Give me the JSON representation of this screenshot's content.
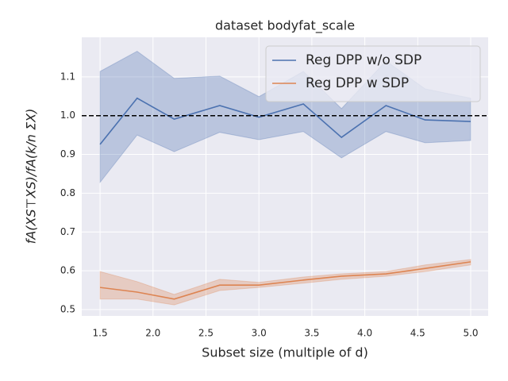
{
  "chart_data": {
    "type": "line",
    "title": "dataset bodyfat_scale",
    "xlabel": "Subset size (multiple of d)",
    "ylabel": "fA(XS⊤XS)/fA(k/n ΣX)",
    "x": [
      1.5,
      1.85,
      2.2,
      2.63,
      3.0,
      3.42,
      3.78,
      4.2,
      4.57,
      5.0
    ],
    "series": [
      {
        "name": "Reg DPP w/o SDP",
        "color": "#4c72b0",
        "values": [
          0.926,
          1.045,
          0.991,
          1.026,
          0.996,
          1.03,
          0.944,
          1.026,
          0.989,
          0.985
        ],
        "lower": [
          0.828,
          0.95,
          0.907,
          0.957,
          0.938,
          0.959,
          0.891,
          0.959,
          0.93,
          0.936
        ],
        "upper": [
          1.114,
          1.166,
          1.096,
          1.102,
          1.049,
          1.114,
          1.018,
          1.141,
          1.069,
          1.045
        ]
      },
      {
        "name": "Reg DPP w SDP",
        "color": "#dd8452",
        "values": [
          0.557,
          0.545,
          0.527,
          0.563,
          0.563,
          0.576,
          0.586,
          0.592,
          0.606,
          0.623
        ],
        "lower": [
          0.527,
          0.527,
          0.512,
          0.549,
          0.557,
          0.568,
          0.578,
          0.586,
          0.598,
          0.615
        ],
        "upper": [
          0.598,
          0.572,
          0.539,
          0.578,
          0.57,
          0.584,
          0.592,
          0.598,
          0.615,
          0.629
        ]
      }
    ],
    "hline": 1,
    "xlim": [
      1.327,
      5.165
    ],
    "ylim": [
      0.4836,
      1.202
    ],
    "xticks": [
      1.5,
      {
        "value": 2,
        "label": "2.0"
      },
      2.5,
      {
        "value": 3,
        "label": "3.0"
      },
      3.5,
      {
        "value": 4,
        "label": "4.0"
      },
      4.5,
      {
        "value": 5,
        "label": "5.0"
      }
    ],
    "yticks": [
      0.5,
      0.6,
      0.7,
      0.8,
      0.9,
      {
        "value": 1,
        "label": "1.0"
      },
      1.1
    ],
    "grid": true,
    "legend": "upper right"
  }
}
